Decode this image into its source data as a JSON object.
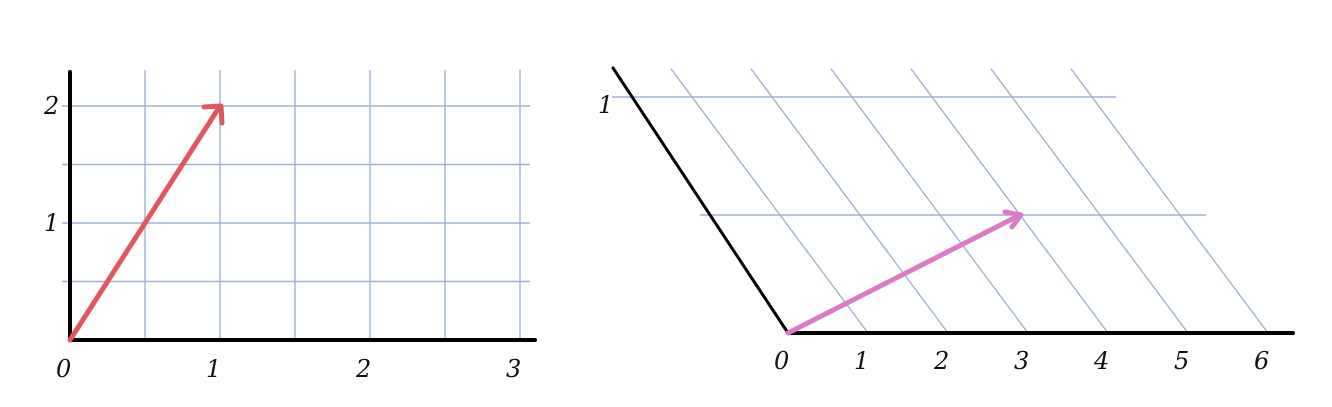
{
  "diagram": {
    "left_panel": {
      "name": "standard-grid",
      "x_ticks": [
        "0",
        "1",
        "2",
        "3"
      ],
      "y_ticks": [
        "1",
        "2"
      ],
      "vector": {
        "x": 1,
        "y": 2,
        "color": "#e0585f"
      },
      "grid_color": "#9fb3d1"
    },
    "right_panel": {
      "name": "skewed-grid",
      "x_ticks": [
        "0",
        "1",
        "2",
        "3",
        "4",
        "5",
        "6"
      ],
      "y_ticks": [
        "1"
      ],
      "vector": {
        "x": 4,
        "y": 0.5,
        "color": "#d97bc7"
      },
      "grid_color": "#9fb3d1"
    }
  }
}
